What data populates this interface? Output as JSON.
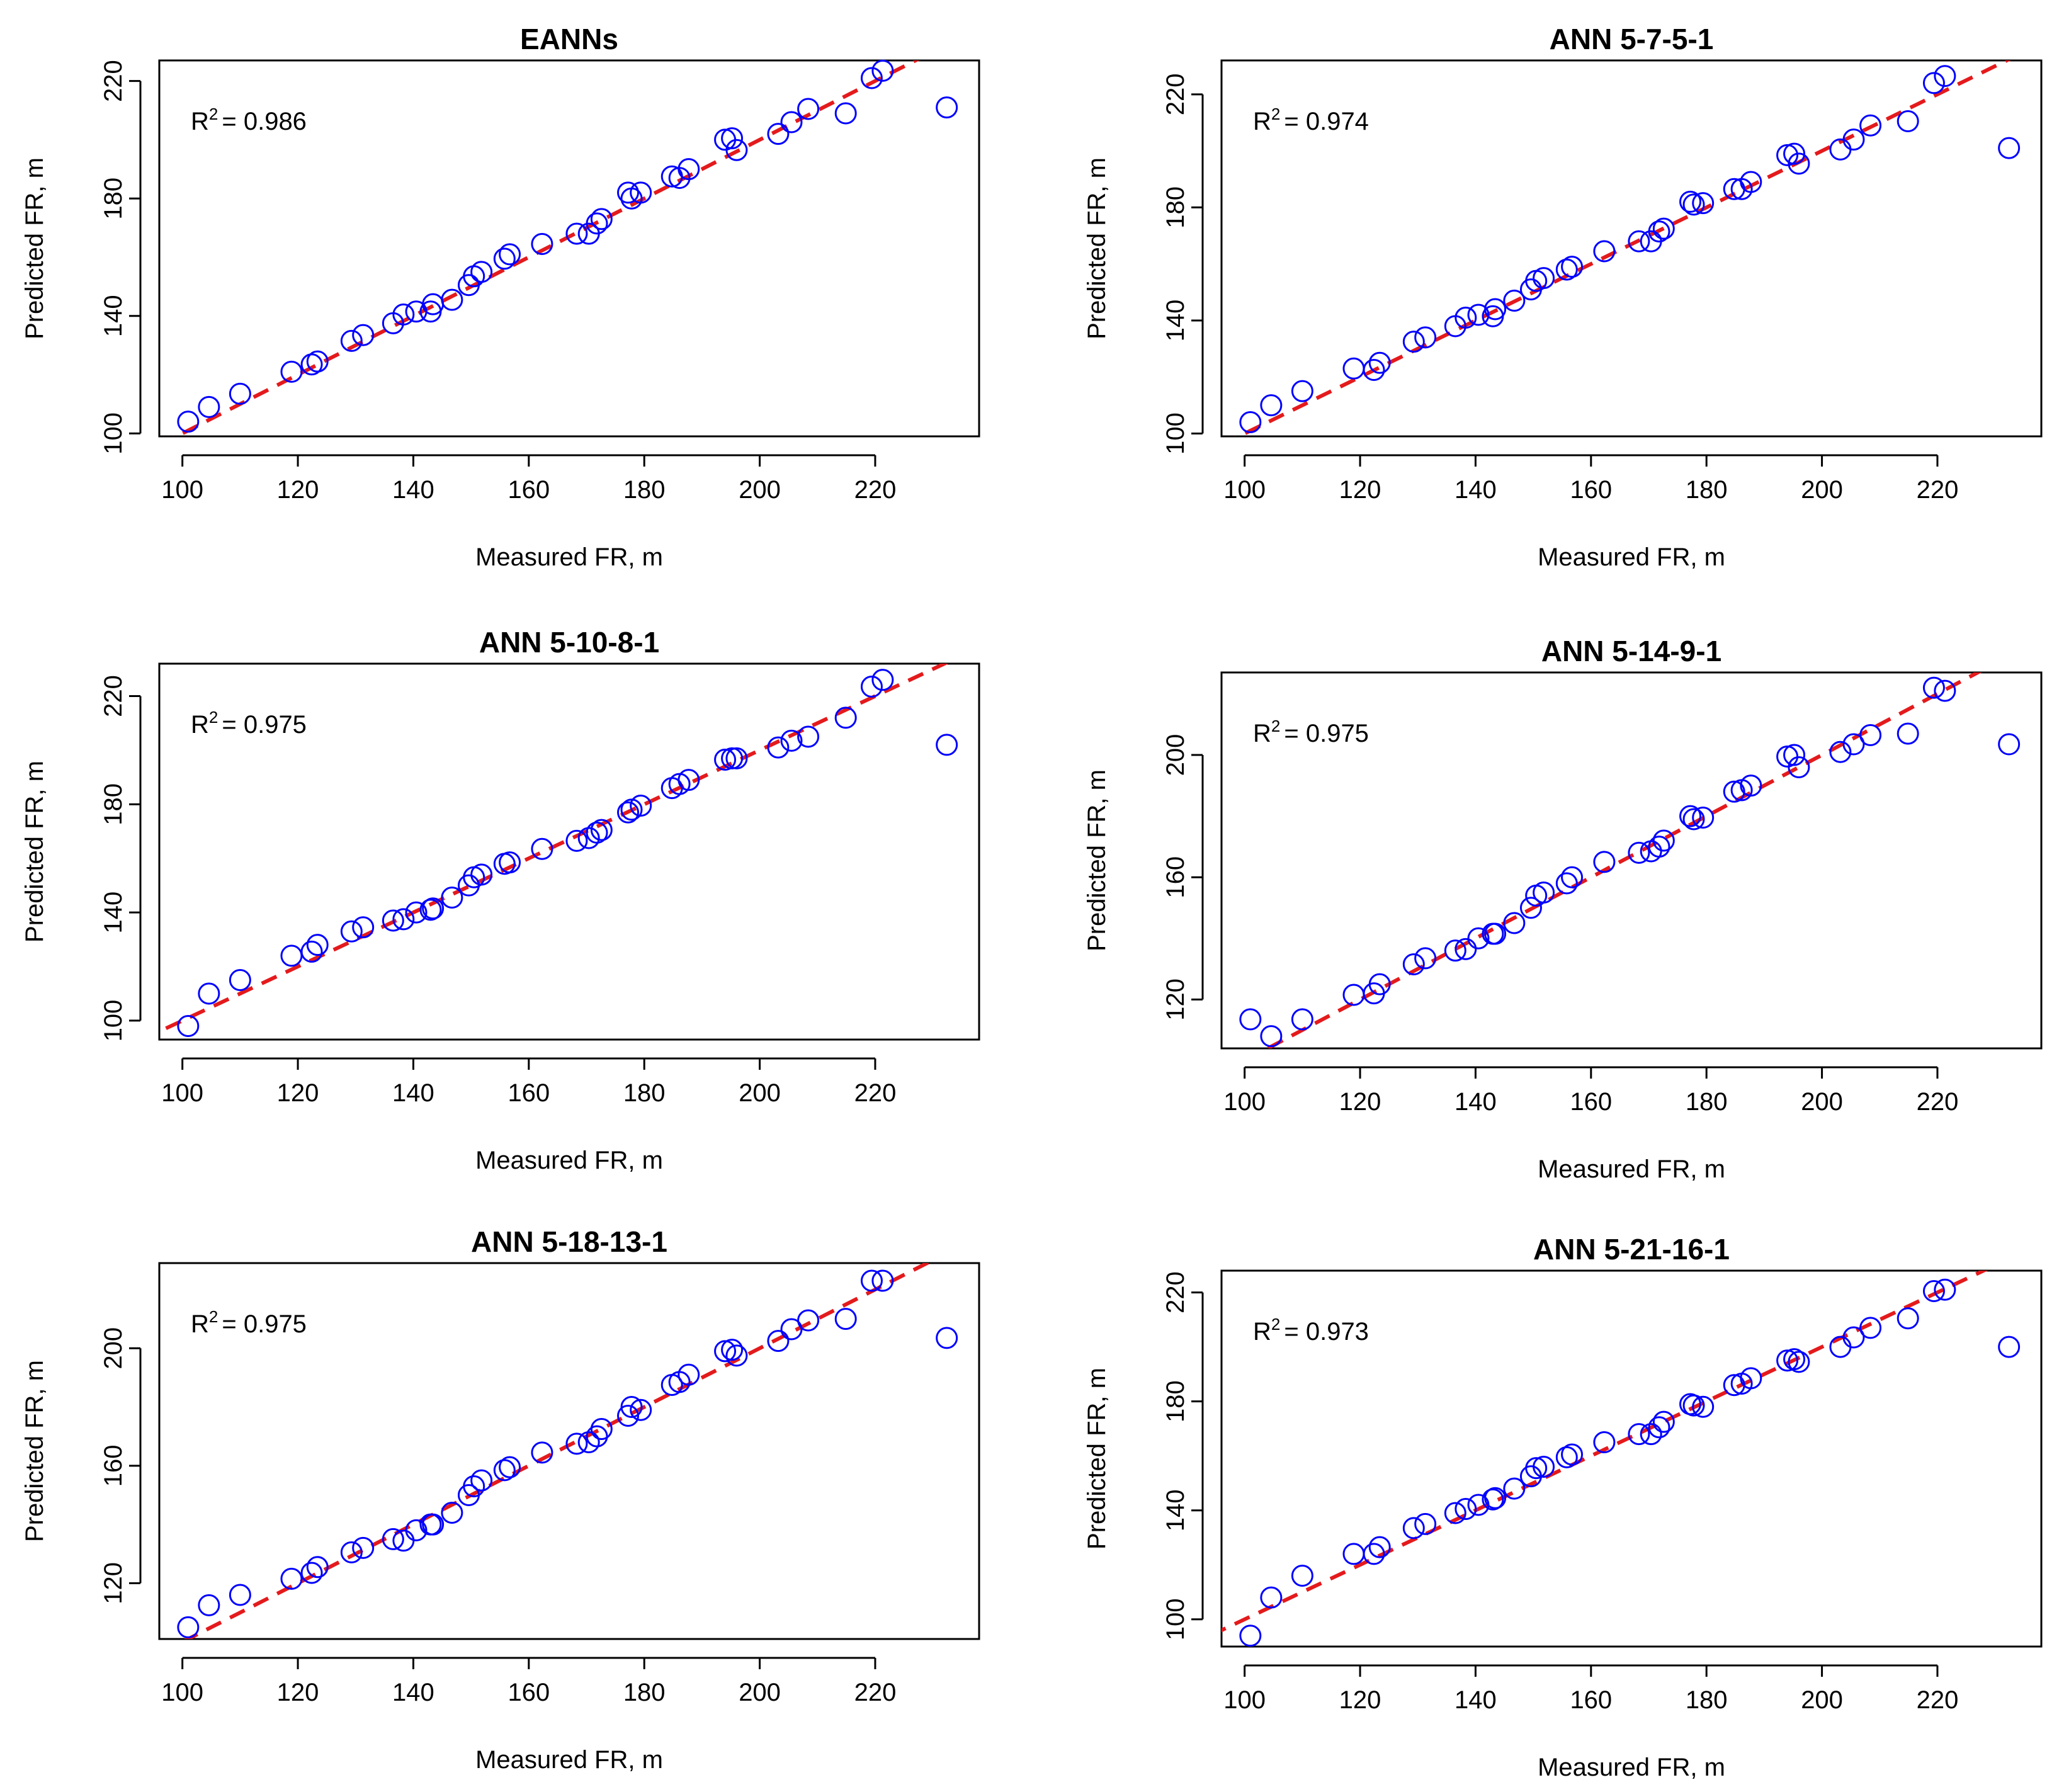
{
  "xlabel": "Measured FR, m",
  "ylabel": "Predicted FR, m",
  "colors": {
    "points": "#0000ff",
    "fit_line": "#e41a1c",
    "axes": "#000000"
  },
  "chart_data": [
    {
      "type": "scatter",
      "title": "EANNs",
      "r2_label": "R",
      "r2_sup": "2",
      "r2_value": "= 0.986",
      "xlim": [
        96,
        238
      ],
      "ylim": [
        99,
        227
      ],
      "xticks": [
        "100",
        "120",
        "140",
        "160",
        "180",
        "200",
        "220"
      ],
      "yticks": [
        "100",
        "140",
        "180",
        "220"
      ],
      "x": [
        101,
        104.6,
        110,
        118.9,
        122.4,
        123.4,
        129.3,
        131.3,
        136.5,
        138.3,
        140.5,
        143,
        143.4,
        146.7,
        149.6,
        150.5,
        151.8,
        155.8,
        156.7,
        162.3,
        168.3,
        170.4,
        171.8,
        172.6,
        177.2,
        177.8,
        179.4,
        184.8,
        186.1,
        187.7,
        194,
        195.2,
        196,
        203.2,
        205.5,
        208.4,
        214.9,
        219.4,
        221.3,
        232.4
      ],
      "y": [
        104,
        109,
        113.5,
        121,
        123.5,
        124.5,
        131.5,
        133.5,
        137.5,
        140.5,
        141.5,
        141.5,
        144,
        145.5,
        150.5,
        153.5,
        155,
        159.5,
        161,
        164.5,
        168,
        168,
        171.5,
        173,
        182,
        180,
        182,
        187.5,
        187,
        190,
        200,
        200.5,
        196.5,
        202,
        206,
        210.5,
        209,
        221,
        223.5,
        211
      ]
    },
    {
      "type": "scatter",
      "title": "ANN 5-7-5-1",
      "r2_label": "R",
      "r2_sup": "2",
      "r2_value": "= 0.974",
      "xlim": [
        96,
        238
      ],
      "ylim": [
        99,
        232
      ],
      "xticks": [
        "100",
        "120",
        "140",
        "160",
        "180",
        "200",
        "220"
      ],
      "yticks": [
        "100",
        "140",
        "180",
        "220"
      ],
      "x": [
        101,
        104.6,
        110,
        118.9,
        122.4,
        123.4,
        129.3,
        131.3,
        136.5,
        138.3,
        140.5,
        143,
        143.4,
        146.7,
        149.6,
        150.5,
        151.8,
        155.8,
        156.7,
        162.3,
        168.3,
        170.4,
        171.8,
        172.6,
        177.2,
        177.8,
        179.4,
        184.8,
        186.1,
        187.7,
        194,
        195.2,
        196,
        203.2,
        205.5,
        208.4,
        214.9,
        219.4,
        221.3,
        232.4
      ],
      "y": [
        104,
        110,
        115,
        123,
        122.5,
        125,
        132.5,
        134,
        138,
        141,
        142,
        141.5,
        144,
        147,
        151,
        154,
        155,
        158,
        159,
        164.5,
        168,
        168,
        171.5,
        172.5,
        182,
        181,
        181.5,
        186.5,
        186.5,
        189,
        198.5,
        199,
        195.5,
        200.5,
        204,
        209,
        210.5,
        224,
        226.5,
        201
      ]
    },
    {
      "type": "scatter",
      "title": "ANN 5-10-8-1",
      "r2_label": "R",
      "r2_sup": "2",
      "r2_value": "= 0.975",
      "xlim": [
        96,
        238
      ],
      "ylim": [
        93,
        232
      ],
      "xticks": [
        "100",
        "120",
        "140",
        "160",
        "180",
        "200",
        "220"
      ],
      "yticks": [
        "100",
        "140",
        "180",
        "220"
      ],
      "x": [
        101,
        104.6,
        110,
        118.9,
        122.4,
        123.4,
        129.3,
        131.3,
        136.5,
        138.3,
        140.5,
        143,
        143.4,
        146.7,
        149.6,
        150.5,
        151.8,
        155.8,
        156.7,
        162.3,
        168.3,
        170.4,
        171.8,
        172.6,
        177.2,
        177.8,
        179.4,
        184.8,
        186.1,
        187.7,
        194,
        195.2,
        196,
        203.2,
        205.5,
        208.4,
        214.9,
        219.4,
        221.3,
        232.4
      ],
      "y": [
        98,
        110,
        115,
        124,
        125.5,
        128,
        133,
        134.5,
        137,
        137.5,
        140,
        141,
        141.5,
        145.5,
        150,
        153,
        154,
        158,
        158.5,
        163.5,
        166.5,
        167.5,
        169.5,
        170.5,
        177,
        178,
        179.5,
        186,
        187.5,
        189,
        196.5,
        197,
        197,
        201,
        203.5,
        205,
        212,
        223.5,
        226,
        202
      ]
    },
    {
      "type": "scatter",
      "title": "ANN 5-14-9-1",
      "r2_label": "R",
      "r2_sup": "2",
      "r2_value": "= 0.975",
      "xlim": [
        96,
        238
      ],
      "ylim": [
        104,
        227
      ],
      "xticks": [
        "100",
        "120",
        "140",
        "160",
        "180",
        "200",
        "220"
      ],
      "yticks": [
        "120",
        "160",
        "200"
      ],
      "x": [
        101,
        104.6,
        110,
        118.9,
        122.4,
        123.4,
        129.3,
        131.3,
        136.5,
        138.3,
        140.5,
        143,
        143.4,
        146.7,
        149.6,
        150.5,
        151.8,
        155.8,
        156.7,
        162.3,
        168.3,
        170.4,
        171.8,
        172.6,
        177.2,
        177.8,
        179.4,
        184.8,
        186.1,
        187.7,
        194,
        195.2,
        196,
        203.2,
        205.5,
        208.4,
        214.9,
        219.4,
        221.3,
        232.4
      ],
      "y": [
        113.5,
        108,
        113.5,
        121.5,
        122,
        125,
        131.5,
        133.5,
        136,
        136.5,
        140,
        141.5,
        141.5,
        145,
        150,
        154,
        155,
        158,
        160,
        165,
        168,
        168.5,
        170,
        172,
        180,
        179,
        179.5,
        188,
        188.5,
        190,
        199.5,
        200,
        196,
        201,
        203.5,
        206.5,
        207,
        222,
        221,
        203.5
      ]
    },
    {
      "type": "scatter",
      "title": "ANN 5-18-13-1",
      "r2_label": "R",
      "r2_sup": "2",
      "r2_value": "= 0.975",
      "xlim": [
        96,
        238
      ],
      "ylim": [
        101,
        229
      ],
      "xticks": [
        "100",
        "120",
        "140",
        "160",
        "180",
        "200",
        "220"
      ],
      "yticks": [
        "120",
        "160",
        "200"
      ],
      "x": [
        101,
        104.6,
        110,
        118.9,
        122.4,
        123.4,
        129.3,
        131.3,
        136.5,
        138.3,
        140.5,
        143,
        143.4,
        146.7,
        149.6,
        150.5,
        151.8,
        155.8,
        156.7,
        162.3,
        168.3,
        170.4,
        171.8,
        172.6,
        177.2,
        177.8,
        179.4,
        184.8,
        186.1,
        187.7,
        194,
        195.2,
        196,
        203.2,
        205.5,
        208.4,
        214.9,
        219.4,
        221.3,
        232.4
      ],
      "y": [
        105,
        112.5,
        116,
        121.5,
        123.5,
        125.5,
        130.5,
        132,
        135,
        134.5,
        138,
        140,
        140,
        144,
        150,
        153,
        155,
        158.5,
        159.5,
        164.5,
        167.5,
        168,
        170,
        172.5,
        177,
        180,
        179,
        187.5,
        188.5,
        191,
        199,
        199.5,
        197.5,
        202.5,
        206.5,
        209.5,
        210,
        223,
        223,
        203.5
      ]
    },
    {
      "type": "scatter",
      "title": "ANN 5-21-16-1",
      "r2_label": "R",
      "r2_sup": "2",
      "r2_value": "= 0.973",
      "xlim": [
        96,
        238
      ],
      "ylim": [
        90,
        228
      ],
      "xticks": [
        "100",
        "120",
        "140",
        "160",
        "180",
        "200",
        "220"
      ],
      "yticks": [
        "100",
        "140",
        "180",
        "220"
      ],
      "x": [
        101,
        104.6,
        110,
        118.9,
        122.4,
        123.4,
        129.3,
        131.3,
        136.5,
        138.3,
        140.5,
        143,
        143.4,
        146.7,
        149.6,
        150.5,
        151.8,
        155.8,
        156.7,
        162.3,
        168.3,
        170.4,
        171.8,
        172.6,
        177.2,
        177.8,
        179.4,
        184.8,
        186.1,
        187.7,
        194,
        195.2,
        196,
        203.2,
        205.5,
        208.4,
        214.9,
        219.4,
        221.3,
        232.4
      ],
      "y": [
        94,
        108,
        116,
        124,
        124,
        126.5,
        133.5,
        135,
        139,
        140.5,
        142,
        144,
        144.5,
        148,
        152.5,
        155.5,
        156,
        159.5,
        160.5,
        165,
        168,
        168,
        170.5,
        172.5,
        179,
        178.5,
        178,
        186,
        186.5,
        188.5,
        195,
        195.5,
        194.5,
        200,
        203.5,
        207,
        210.5,
        220.5,
        221,
        200
      ]
    }
  ]
}
